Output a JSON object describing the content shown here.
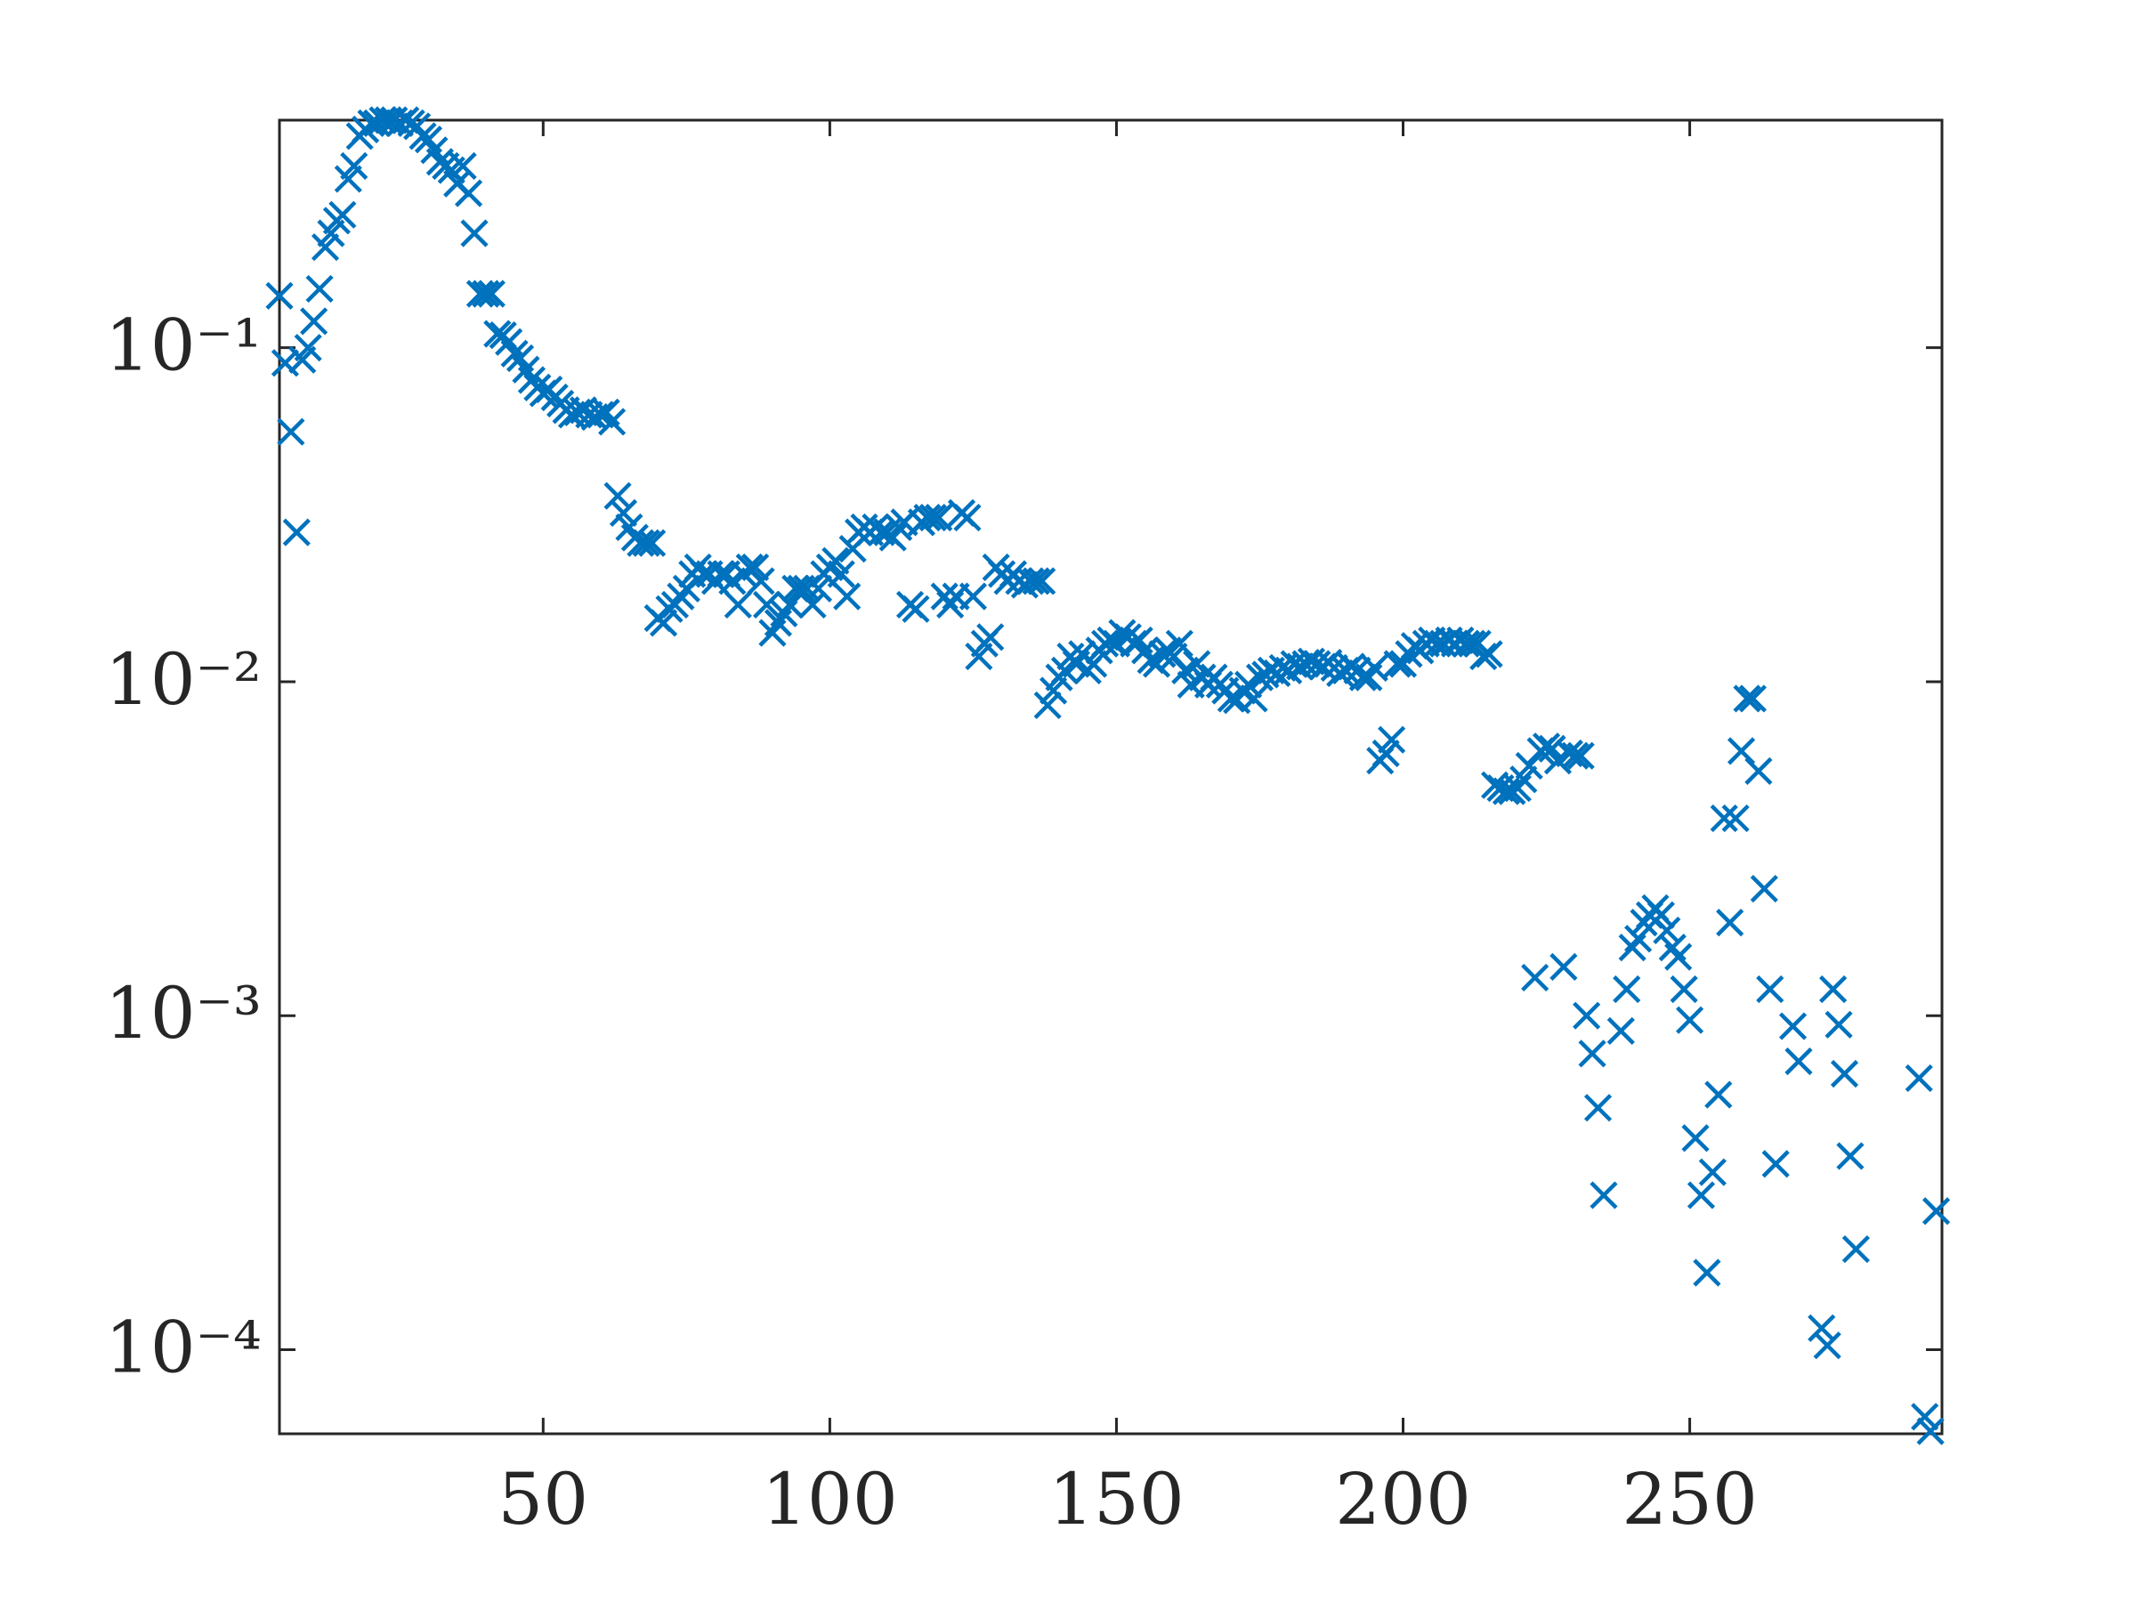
{
  "chart_data": {
    "type": "scatter",
    "color": "#0072bd",
    "yscale": "log",
    "grid": false,
    "xlim": [
      4,
      294
    ],
    "ylim": [
      5.6e-05,
      0.48
    ],
    "xticks": [
      50,
      100,
      150,
      200,
      250
    ],
    "yticks": [
      {
        "value": 0.0001,
        "label": "10⁻⁴"
      },
      {
        "value": 0.001,
        "label": "10⁻³"
      },
      {
        "value": 0.01,
        "label": "10⁻²"
      },
      {
        "value": 0.1,
        "label": "10⁻¹"
      }
    ],
    "x": [
      4,
      5,
      6,
      7,
      8,
      9,
      10,
      11,
      12,
      13,
      14,
      15,
      16,
      17,
      18,
      19,
      20,
      21,
      22,
      23,
      24,
      25,
      26,
      27,
      28,
      29,
      30,
      31,
      32,
      33,
      34,
      35,
      36,
      37,
      38,
      39,
      40,
      41,
      42,
      43,
      44,
      45,
      46,
      47,
      48,
      49,
      50,
      51,
      52,
      53,
      54,
      55,
      56,
      57,
      58,
      59,
      60,
      61,
      62,
      63,
      64,
      65,
      66,
      67,
      68,
      69,
      70,
      71,
      72,
      73,
      74,
      75,
      76,
      77,
      78,
      79,
      80,
      81,
      82,
      83,
      84,
      85,
      86,
      87,
      88,
      89,
      90,
      91,
      92,
      93,
      94,
      95,
      96,
      97,
      98,
      99,
      100,
      101,
      102,
      103,
      104,
      105,
      106,
      107,
      108,
      109,
      110,
      111,
      112,
      113,
      114,
      115,
      116,
      117,
      118,
      119,
      120,
      121,
      122,
      123,
      124,
      125,
      126,
      127,
      128,
      129,
      130,
      131,
      132,
      133,
      134,
      135,
      136,
      137,
      138,
      139,
      140,
      141,
      142,
      143,
      144,
      145,
      146,
      147,
      148,
      149,
      150,
      151,
      152,
      153,
      154,
      155,
      156,
      157,
      158,
      159,
      160,
      161,
      162,
      163,
      164,
      165,
      166,
      167,
      168,
      169,
      170,
      171,
      172,
      173,
      174,
      175,
      176,
      177,
      178,
      179,
      180,
      181,
      182,
      183,
      184,
      185,
      186,
      187,
      188,
      189,
      190,
      191,
      192,
      193,
      194,
      195,
      196,
      197,
      198,
      199,
      200,
      201,
      202,
      203,
      204,
      205,
      206,
      207,
      208,
      209,
      210,
      211,
      212,
      213,
      214,
      215,
      216,
      217,
      218,
      219,
      220,
      221,
      222,
      223,
      224,
      225,
      226,
      227,
      228,
      229,
      230,
      231,
      232,
      233,
      234,
      235,
      238,
      239,
      240,
      241,
      242,
      243,
      244,
      245,
      246,
      247,
      248,
      249,
      250,
      251,
      252,
      253,
      254,
      255,
      256,
      257,
      258,
      259,
      260,
      261,
      262,
      263,
      264,
      265,
      268,
      269,
      273,
      274,
      275,
      276,
      277,
      278,
      279,
      290,
      291,
      292,
      293
    ],
    "values": [
      0.143,
      0.09,
      0.056,
      0.028,
      0.092,
      0.1,
      0.12,
      0.15,
      0.2,
      0.22,
      0.24,
      0.25,
      0.32,
      0.35,
      0.43,
      0.45,
      0.47,
      0.47,
      0.48,
      0.48,
      0.48,
      0.47,
      0.48,
      0.47,
      0.46,
      0.43,
      0.42,
      0.39,
      0.36,
      0.35,
      0.34,
      0.31,
      0.35,
      0.29,
      0.22,
      0.145,
      0.145,
      0.145,
      0.11,
      0.109,
      0.104,
      0.096,
      0.093,
      0.086,
      0.08,
      0.076,
      0.073,
      0.075,
      0.071,
      0.068,
      0.065,
      0.063,
      0.064,
      0.065,
      0.063,
      0.062,
      0.063,
      0.064,
      0.06,
      0.036,
      0.032,
      0.029,
      0.027,
      0.026,
      0.026,
      0.026,
      0.0155,
      0.015,
      0.0165,
      0.017,
      0.018,
      0.019,
      0.021,
      0.022,
      0.021,
      0.021,
      0.02,
      0.021,
      0.021,
      0.02,
      0.017,
      0.021,
      0.022,
      0.022,
      0.02,
      0.017,
      0.014,
      0.015,
      0.016,
      0.017,
      0.019,
      0.019,
      0.019,
      0.017,
      0.019,
      0.021,
      0.022,
      0.023,
      0.021,
      0.018,
      0.025,
      0.028,
      0.029,
      0.028,
      0.029,
      0.028,
      0.028,
      0.027,
      0.029,
      0.03,
      0.017,
      0.0165,
      0.03,
      0.031,
      0.031,
      0.031,
      0.018,
      0.017,
      0.018,
      0.032,
      0.031,
      0.018,
      0.0119,
      0.013,
      0.0136,
      0.022,
      0.021,
      0.02,
      0.021,
      0.02,
      0.0195,
      0.02,
      0.02,
      0.02,
      0.0085,
      0.0094,
      0.0103,
      0.0108,
      0.0119,
      0.0113,
      0.0121,
      0.0108,
      0.0113,
      0.0124,
      0.013,
      0.0133,
      0.013,
      0.014,
      0.0136,
      0.013,
      0.0133,
      0.0124,
      0.0116,
      0.0113,
      0.0121,
      0.0124,
      0.0119,
      0.013,
      0.0108,
      0.0098,
      0.0113,
      0.0103,
      0.0098,
      0.0103,
      0.0098,
      0.0094,
      0.0089,
      0.0088,
      0.0094,
      0.0098,
      0.0089,
      0.0103,
      0.0105,
      0.0108,
      0.0106,
      0.011,
      0.0108,
      0.0113,
      0.0111,
      0.0113,
      0.0115,
      0.0113,
      0.0111,
      0.0114,
      0.011,
      0.0106,
      0.0108,
      0.0111,
      0.0108,
      0.0103,
      0.0103,
      0.011,
      0.0058,
      0.0061,
      0.0067,
      0.0113,
      0.0113,
      0.0121,
      0.0128,
      0.0124,
      0.013,
      0.0133,
      0.013,
      0.013,
      0.0133,
      0.013,
      0.0133,
      0.013,
      0.013,
      0.013,
      0.0119,
      0.0121,
      0.0049,
      0.0048,
      0.0047,
      0.0047,
      0.0048,
      0.0051,
      0.0056,
      0.0013,
      0.0062,
      0.0064,
      0.0063,
      0.0058,
      0.0014,
      0.0061,
      0.006,
      0.006,
      0.001,
      0.00077,
      0.00053,
      0.00029,
      0.0009,
      0.0012,
      0.0016,
      0.0017,
      0.0019,
      0.002,
      0.0021,
      0.002,
      0.0018,
      0.0016,
      0.0015,
      0.0012,
      0.00097,
      0.00043,
      0.00029,
      0.00017,
      0.00034,
      0.00058,
      0.0039,
      0.0019,
      0.0039,
      0.0062,
      0.0089,
      0.0089,
      0.0054,
      0.0024,
      0.0012,
      0.00036,
      0.00093,
      0.00073,
      0.000116,
      0.000103,
      0.0012,
      0.00094,
      0.00067,
      0.00038,
      0.0002,
      0.00065,
      6.3e-05,
      5.7e-05,
      0.00026
    ]
  }
}
